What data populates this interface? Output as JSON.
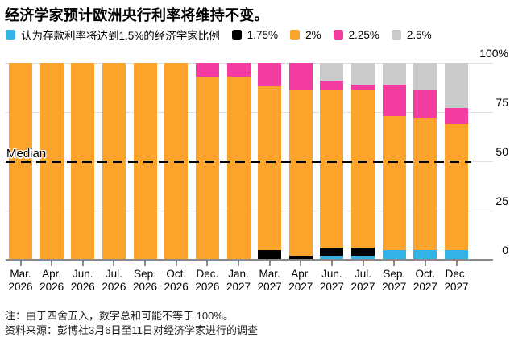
{
  "title": "经济学家预计欧洲央行利率将维持不变。",
  "median_label": "Median",
  "legend": [
    {
      "key": "rate-1-5",
      "label": "认为存款利率将达到1.5%的经济学家比例",
      "color": "#33B2E8"
    },
    {
      "key": "rate-1-75",
      "label": "1.75%",
      "color": "#000000"
    },
    {
      "key": "rate-2",
      "label": "2%",
      "color": "#FCA32B"
    },
    {
      "key": "rate-2-25",
      "label": "2.25%",
      "color": "#F33CA0"
    },
    {
      "key": "rate-2-5",
      "label": "2.5%",
      "color": "#CBCBCB"
    }
  ],
  "notes": {
    "rounding": "注：由于四舍五入，数字总和可能不等于 100%。",
    "source": "资料来源：彭博社3月6日至11日对经济学家进行的调查"
  },
  "chart_data": {
    "type": "bar",
    "stacked": true,
    "title": "经济学家预计欧洲央行利率将维持不变。",
    "categories": [
      "Mar. 2026",
      "Apr. 2026",
      "Jun. 2026",
      "Jul. 2026",
      "Sep. 2026",
      "Oct. 2026",
      "Dec. 2026",
      "Jan. 2027",
      "Mar. 2027",
      "Apr. 2027",
      "Jun. 2027",
      "Jul. 2027",
      "Sep. 2027",
      "Oct. 2027",
      "Dec. 2027"
    ],
    "series": [
      {
        "name": "认为存款利率将达到1.5%的经济学家比例",
        "rate": "1.5%",
        "color": "#33B2E8",
        "values": [
          0,
          0,
          0,
          0,
          0,
          0,
          0,
          0,
          0,
          0,
          2,
          2,
          5,
          5,
          5
        ]
      },
      {
        "name": "1.75%",
        "rate": "1.75%",
        "color": "#000000",
        "values": [
          0,
          0,
          0,
          0,
          0,
          0,
          0,
          0,
          5,
          2,
          4,
          4,
          0,
          0,
          0
        ]
      },
      {
        "name": "2%",
        "rate": "2%",
        "color": "#FCA32B",
        "values": [
          100,
          100,
          100,
          100,
          100,
          100,
          93,
          93,
          83,
          84,
          80,
          80,
          68,
          67,
          64
        ]
      },
      {
        "name": "2.25%",
        "rate": "2.25%",
        "color": "#F33CA0",
        "values": [
          0,
          0,
          0,
          0,
          0,
          0,
          7,
          7,
          12,
          14,
          5,
          3,
          16,
          14,
          8
        ]
      },
      {
        "name": "2.5%",
        "rate": "2.5%",
        "color": "#CBCBCB",
        "values": [
          0,
          0,
          0,
          0,
          0,
          0,
          0,
          0,
          0,
          0,
          9,
          11,
          11,
          14,
          23
        ]
      }
    ],
    "y_ticks": [
      "0",
      "25",
      "50",
      "75",
      "100%"
    ],
    "ylim": [
      0,
      100
    ],
    "median_line": 50,
    "grid": true,
    "legend_position": "top",
    "y_axis_side": "right"
  }
}
